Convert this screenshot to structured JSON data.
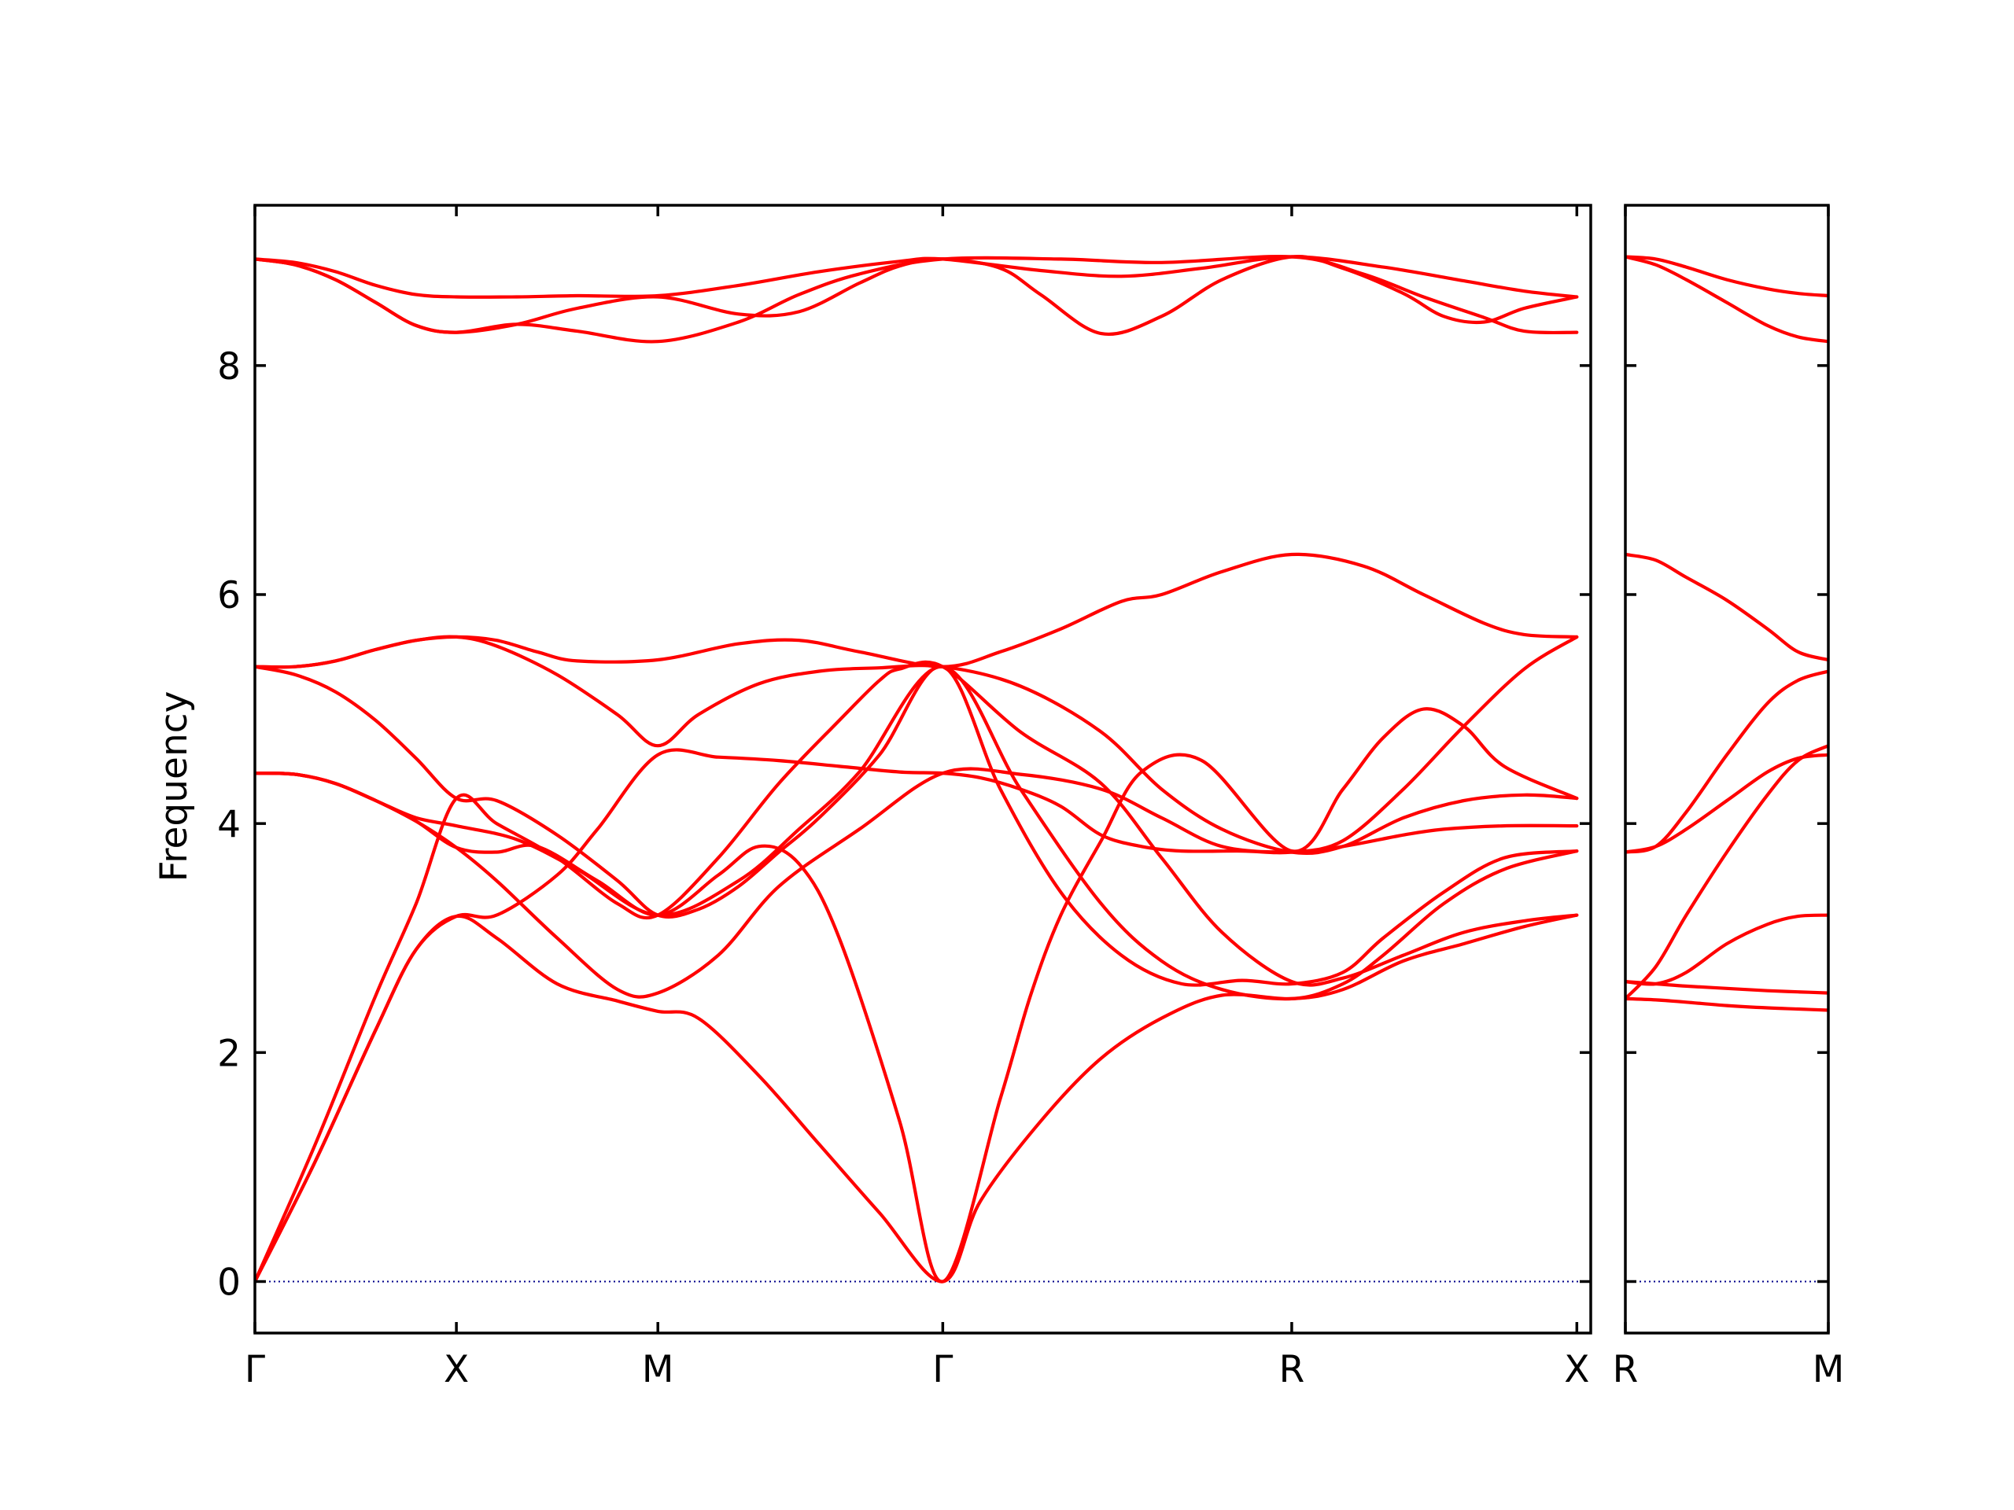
{
  "chart_data": {
    "type": "line",
    "ylabel": "Frequency",
    "ylim": [
      -0.45,
      9.4
    ],
    "yticks": [
      0,
      2,
      4,
      6,
      8
    ],
    "zero_line": {
      "value": 0,
      "color": "#00008b",
      "style": "dotted"
    },
    "band_color": "#ff0000",
    "panels": [
      {
        "name": "main",
        "xlim": [
          0,
          6.63
        ],
        "tick_positions": [
          0,
          1,
          2,
          3.414,
          5.146,
          6.561
        ],
        "tick_labels": [
          "Γ",
          "X",
          "M",
          "Γ",
          "R",
          "X"
        ],
        "series": [
          {
            "x": [
              0,
              0.2,
              0.4,
              0.6,
              0.8,
              1.0,
              1.3,
              1.6,
              2.0,
              2.4,
              2.8,
              3.2,
              3.414,
              3.9,
              4.3,
              4.7,
              5.146,
              5.6,
              6.0,
              6.3,
              6.561
            ],
            "y": [
              8.93,
              8.9,
              8.82,
              8.7,
              8.62,
              8.6,
              8.6,
              8.61,
              8.61,
              8.7,
              8.82,
              8.91,
              8.93,
              8.83,
              8.78,
              8.85,
              8.95,
              8.86,
              8.74,
              8.65,
              8.6
            ]
          },
          {
            "x": [
              0,
              0.2,
              0.4,
              0.6,
              0.8,
              1.0,
              1.3,
              1.6,
              2.0,
              2.4,
              2.7,
              3.0,
              3.2,
              3.414,
              3.7,
              3.9,
              4.2,
              4.5,
              4.8,
              5.146,
              5.4,
              5.7,
              5.9,
              6.1,
              6.3,
              6.561
            ],
            "y": [
              8.93,
              8.88,
              8.75,
              8.55,
              8.35,
              8.29,
              8.36,
              8.5,
              8.6,
              8.45,
              8.47,
              8.72,
              8.87,
              8.93,
              8.85,
              8.62,
              8.28,
              8.43,
              8.75,
              8.95,
              8.85,
              8.63,
              8.43,
              8.38,
              8.5,
              8.6
            ]
          },
          {
            "x": [
              0,
              0.2,
              0.4,
              0.6,
              0.8,
              1.0,
              1.3,
              1.6,
              2.0,
              2.4,
              2.7,
              3.0,
              3.414,
              4.0,
              4.5,
              5.146,
              5.5,
              5.8,
              6.1,
              6.3,
              6.561
            ],
            "y": [
              8.93,
              8.88,
              8.75,
              8.55,
              8.35,
              8.29,
              8.36,
              8.3,
              8.21,
              8.38,
              8.62,
              8.8,
              8.93,
              8.93,
              8.9,
              8.95,
              8.8,
              8.6,
              8.42,
              8.3,
              8.29
            ]
          },
          {
            "x": [
              0,
              0.2,
              0.4,
              0.6,
              0.8,
              1.0,
              1.2,
              1.4,
              1.6,
              2.0,
              2.4,
              2.7,
              3.0,
              3.414,
              3.7,
              4.0,
              4.3,
              4.5,
              4.8,
              5.146,
              5.5,
              5.8,
              6.1,
              6.3,
              6.561
            ],
            "y": [
              5.37,
              5.37,
              5.42,
              5.52,
              5.6,
              5.63,
              5.6,
              5.5,
              5.42,
              5.43,
              5.57,
              5.6,
              5.5,
              5.37,
              5.5,
              5.7,
              5.94,
              6.0,
              6.2,
              6.35,
              6.25,
              6.0,
              5.75,
              5.65,
              5.63
            ]
          },
          {
            "x": [
              0,
              0.2,
              0.4,
              0.6,
              0.8,
              1.0,
              1.2,
              1.5,
              1.8,
              2.0,
              2.2,
              2.5,
              2.8,
              3.1,
              3.414,
              3.8,
              4.2,
              4.5,
              4.8,
              5.146,
              5.4,
              5.7,
              6.0,
              6.3,
              6.561
            ],
            "y": [
              5.37,
              5.37,
              5.42,
              5.52,
              5.6,
              5.63,
              5.55,
              5.3,
              4.95,
              4.68,
              4.95,
              5.22,
              5.33,
              5.36,
              5.37,
              5.2,
              4.8,
              4.3,
              3.95,
              3.75,
              3.8,
              4.05,
              4.2,
              4.25,
              4.22
            ]
          },
          {
            "x": [
              0,
              0.2,
              0.4,
              0.6,
              0.8,
              1.0,
              1.2,
              1.5,
              1.8,
              2.0,
              2.2,
              2.4,
              2.6,
              2.8,
              3.1,
              3.414,
              3.7,
              4.0,
              4.3,
              4.6,
              4.9,
              5.146,
              5.4,
              5.6,
              5.9,
              6.2,
              6.561
            ],
            "y": [
              5.37,
              5.3,
              5.15,
              4.9,
              4.57,
              4.22,
              4.2,
              3.9,
              3.5,
              3.2,
              3.25,
              3.45,
              3.75,
              4.05,
              4.6,
              5.37,
              4.3,
              3.4,
              2.85,
              2.6,
              2.63,
              2.6,
              2.7,
              3.0,
              3.4,
              3.7,
              3.76
            ]
          },
          {
            "x": [
              0,
              0.2,
              0.4,
              0.6,
              0.8,
              1.0,
              1.3,
              1.6,
              2.0,
              2.4,
              2.7,
              3.0,
              3.414,
              3.8,
              4.2,
              4.5,
              4.8,
              5.146,
              5.4,
              5.6,
              5.9,
              6.2,
              6.561
            ],
            "y": [
              4.44,
              4.43,
              4.35,
              4.2,
              4.05,
              3.98,
              3.86,
              3.6,
              3.2,
              3.5,
              3.95,
              4.45,
              5.37,
              4.3,
              3.3,
              2.8,
              2.55,
              2.47,
              2.6,
              2.85,
              3.3,
              3.6,
              3.76
            ]
          },
          {
            "x": [
              0,
              0.2,
              0.4,
              0.6,
              0.8,
              1.0,
              1.2,
              1.5,
              1.8,
              2.0,
              2.3,
              2.6,
              3.0,
              3.414,
              3.8,
              4.2,
              4.5,
              4.8,
              5.146,
              5.4,
              5.7,
              5.9,
              6.2,
              6.561
            ],
            "y": [
              4.44,
              4.43,
              4.35,
              4.2,
              4.02,
              3.79,
              3.5,
              3.0,
              2.55,
              2.52,
              2.85,
              3.45,
              3.95,
              4.44,
              4.43,
              4.3,
              4.05,
              3.8,
              3.75,
              3.8,
              3.9,
              3.95,
              3.98,
              3.98
            ]
          },
          {
            "x": [
              0,
              0.2,
              0.4,
              0.6,
              0.8,
              1.0,
              1.2,
              1.4,
              1.7,
              2.0,
              2.3,
              2.5,
              2.7,
              2.9,
              3.2,
              3.414,
              3.7,
              3.85,
              4.0,
              4.2,
              4.4,
              4.7,
              5.146,
              5.4,
              5.6,
              5.8,
              6.0,
              6.2,
              6.561
            ],
            "y": [
              4.44,
              4.43,
              4.35,
              4.2,
              4.02,
              3.79,
              3.75,
              3.8,
              3.5,
              3.2,
              3.55,
              3.8,
              3.65,
              3.0,
              1.4,
              0.0,
              1.6,
              2.5,
              3.2,
              3.85,
              4.45,
              4.55,
              3.76,
              4.3,
              4.75,
              5.0,
              4.85,
              4.5,
              4.22
            ]
          },
          {
            "x": [
              0,
              0.3,
              0.6,
              0.8,
              1.0,
              1.2,
              1.5,
              1.7,
              2.0,
              2.3,
              2.6,
              2.9,
              3.2,
              3.414,
              3.6,
              3.8,
              4.0,
              4.2,
              4.4,
              4.6,
              4.9,
              5.146,
              5.4,
              5.7,
              6.0,
              6.3,
              6.561
            ],
            "y": [
              0,
              1.05,
              2.2,
              2.9,
              3.19,
              3.2,
              3.55,
              3.95,
              4.6,
              4.58,
              4.55,
              4.5,
              4.45,
              4.44,
              4.4,
              4.3,
              4.15,
              3.9,
              3.8,
              3.76,
              3.76,
              3.75,
              3.85,
              4.3,
              4.85,
              5.35,
              5.63
            ]
          },
          {
            "x": [
              0,
              0.3,
              0.6,
              0.8,
              1.0,
              1.2,
              1.5,
              1.8,
              2.0,
              2.3,
              2.6,
              2.9,
              3.1,
              3.2,
              3.414,
              3.8,
              4.2,
              4.5,
              4.8,
              5.146,
              5.4,
              5.7,
              6.0,
              6.3,
              6.561
            ],
            "y": [
              0,
              1.2,
              2.5,
              3.3,
              4.22,
              4.0,
              3.7,
              3.3,
              3.2,
              3.7,
              4.35,
              4.9,
              5.25,
              5.35,
              5.37,
              4.8,
              4.35,
              3.7,
              3.05,
              2.62,
              2.65,
              2.85,
              3.05,
              3.15,
              3.2
            ]
          },
          {
            "x": [
              0,
              0.3,
              0.6,
              0.8,
              1.0,
              1.2,
              1.5,
              1.8,
              2.0,
              2.2,
              2.5,
              2.8,
              3.1,
              3.414,
              3.6,
              3.9,
              4.2,
              4.5,
              4.8,
              5.146,
              5.4,
              5.7,
              6.0,
              6.3,
              6.561
            ],
            "y": [
              0,
              1.05,
              2.2,
              2.9,
              3.19,
              3.0,
              2.6,
              2.45,
              2.36,
              2.3,
              1.8,
              1.2,
              0.6,
              0.0,
              0.7,
              1.4,
              1.95,
              2.3,
              2.5,
              2.47,
              2.55,
              2.8,
              2.95,
              3.1,
              3.2
            ]
          }
        ]
      },
      {
        "name": "right",
        "xlim": [
          0,
          1.0
        ],
        "tick_positions": [
          0,
          1.0
        ],
        "tick_labels": [
          "R",
          "M"
        ],
        "series": [
          {
            "x": [
              0,
              0.15,
              0.3,
              0.5,
              0.7,
              0.85,
              1.0
            ],
            "y": [
              8.95,
              8.93,
              8.86,
              8.75,
              8.67,
              8.63,
              8.61
            ]
          },
          {
            "x": [
              0,
              0.15,
              0.3,
              0.5,
              0.7,
              0.85,
              1.0
            ],
            "y": [
              8.95,
              8.88,
              8.75,
              8.55,
              8.35,
              8.25,
              8.21
            ]
          },
          {
            "x": [
              0,
              0.15,
              0.3,
              0.5,
              0.7,
              0.85,
              1.0
            ],
            "y": [
              6.35,
              6.3,
              6.15,
              5.95,
              5.7,
              5.5,
              5.43
            ]
          },
          {
            "x": [
              0,
              0.15,
              0.3,
              0.5,
              0.7,
              0.85,
              1.0
            ],
            "y": [
              3.75,
              3.8,
              4.1,
              4.6,
              5.05,
              5.25,
              5.33
            ]
          },
          {
            "x": [
              0,
              0.15,
              0.3,
              0.5,
              0.7,
              0.85,
              1.0
            ],
            "y": [
              3.75,
              3.8,
              3.95,
              4.2,
              4.45,
              4.57,
              4.6
            ]
          },
          {
            "x": [
              0,
              0.15,
              0.3,
              0.5,
              0.7,
              0.85,
              1.0
            ],
            "y": [
              2.47,
              2.75,
              3.2,
              3.75,
              4.25,
              4.55,
              4.68
            ]
          },
          {
            "x": [
              0,
              0.15,
              0.3,
              0.5,
              0.7,
              0.85,
              1.0
            ],
            "y": [
              2.62,
              2.6,
              2.7,
              2.95,
              3.12,
              3.19,
              3.2
            ]
          },
          {
            "x": [
              0,
              0.15,
              0.3,
              0.5,
              0.7,
              0.85,
              1.0
            ],
            "y": [
              2.62,
              2.6,
              2.58,
              2.56,
              2.54,
              2.53,
              2.52
            ]
          },
          {
            "x": [
              0,
              0.15,
              0.3,
              0.5,
              0.7,
              0.85,
              1.0
            ],
            "y": [
              2.47,
              2.46,
              2.44,
              2.41,
              2.39,
              2.38,
              2.37
            ]
          }
        ]
      }
    ]
  }
}
